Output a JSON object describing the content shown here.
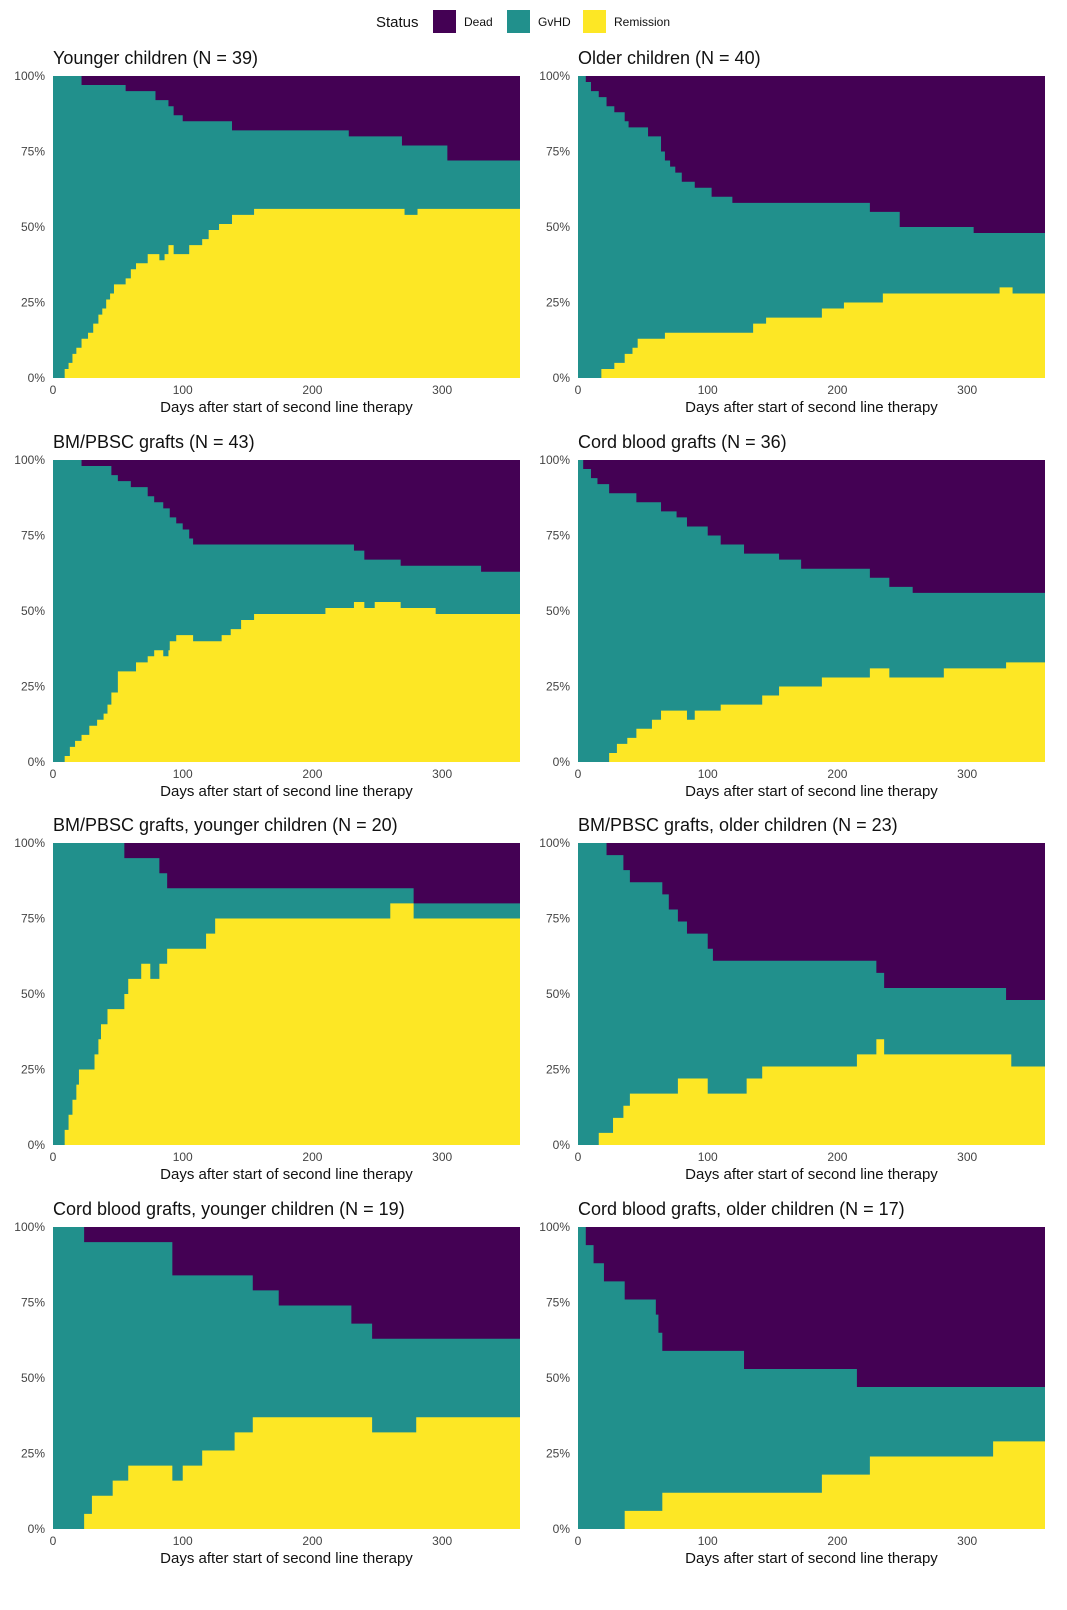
{
  "legend": {
    "title": "Status",
    "entries": [
      {
        "label": "Dead",
        "color": "#440154"
      },
      {
        "label": "GvHD",
        "color": "#21908C"
      },
      {
        "label": "Remission",
        "color": "#FDE725"
      }
    ]
  },
  "chart_data": [
    {
      "type": "area",
      "title": "Younger children (N = 39)",
      "xlabel": "Days after start of second line therapy",
      "xlim": [
        0,
        360
      ],
      "ylim": [
        0,
        1
      ],
      "xticks": [
        0,
        100,
        200,
        300
      ],
      "yticks": [
        "0%",
        "25%",
        "50%",
        "75%",
        "100%"
      ],
      "stacking": "Remission bottom, GvHD middle, Dead top",
      "steps": [
        [
          0,
          0.0,
          1.0
        ],
        [
          9,
          0.03,
          1.0
        ],
        [
          12,
          0.05,
          1.0
        ],
        [
          15,
          0.08,
          1.0
        ],
        [
          18,
          0.1,
          1.0
        ],
        [
          22,
          0.13,
          0.97
        ],
        [
          27,
          0.15,
          0.97
        ],
        [
          31,
          0.18,
          0.97
        ],
        [
          35,
          0.21,
          0.97
        ],
        [
          38,
          0.23,
          0.97
        ],
        [
          41,
          0.26,
          0.97
        ],
        [
          44,
          0.28,
          0.97
        ],
        [
          47,
          0.31,
          0.97
        ],
        [
          56,
          0.33,
          0.95
        ],
        [
          60,
          0.36,
          0.95
        ],
        [
          64,
          0.38,
          0.95
        ],
        [
          73,
          0.41,
          0.95
        ],
        [
          79,
          0.41,
          0.92
        ],
        [
          82,
          0.39,
          0.92
        ],
        [
          86,
          0.41,
          0.92
        ],
        [
          89,
          0.44,
          0.9
        ],
        [
          93,
          0.41,
          0.87
        ],
        [
          100,
          0.41,
          0.85
        ],
        [
          105,
          0.44,
          0.85
        ],
        [
          115,
          0.46,
          0.85
        ],
        [
          120,
          0.49,
          0.85
        ],
        [
          128,
          0.51,
          0.85
        ],
        [
          138,
          0.54,
          0.82
        ],
        [
          155,
          0.56,
          0.82
        ],
        [
          228,
          0.56,
          0.8
        ],
        [
          269,
          0.56,
          0.77
        ],
        [
          271,
          0.54,
          0.77
        ],
        [
          281,
          0.56,
          0.77
        ],
        [
          304,
          0.56,
          0.72
        ],
        [
          360,
          0.56,
          0.72
        ]
      ]
    },
    {
      "type": "area",
      "title": "Older children (N = 40)",
      "xlabel": "Days after start of second line therapy",
      "xlim": [
        0,
        360
      ],
      "ylim": [
        0,
        1
      ],
      "xticks": [
        0,
        100,
        200,
        300
      ],
      "yticks": [
        "0%",
        "25%",
        "50%",
        "75%",
        "100%"
      ],
      "stacking": "Remission bottom, GvHD middle, Dead top",
      "steps": [
        [
          0,
          0.0,
          1.0
        ],
        [
          6,
          0.0,
          0.98
        ],
        [
          10,
          0.0,
          0.95
        ],
        [
          16,
          0.0,
          0.93
        ],
        [
          18,
          0.03,
          0.93
        ],
        [
          22,
          0.03,
          0.9
        ],
        [
          28,
          0.05,
          0.88
        ],
        [
          36,
          0.08,
          0.85
        ],
        [
          39,
          0.08,
          0.83
        ],
        [
          42,
          0.1,
          0.83
        ],
        [
          46,
          0.13,
          0.83
        ],
        [
          54,
          0.13,
          0.8
        ],
        [
          64,
          0.13,
          0.75
        ],
        [
          67,
          0.15,
          0.72
        ],
        [
          71,
          0.15,
          0.7
        ],
        [
          75,
          0.15,
          0.68
        ],
        [
          80,
          0.15,
          0.65
        ],
        [
          85,
          0.15,
          0.65
        ],
        [
          90,
          0.15,
          0.63
        ],
        [
          97,
          0.15,
          0.63
        ],
        [
          103,
          0.15,
          0.6
        ],
        [
          108,
          0.15,
          0.6
        ],
        [
          119,
          0.15,
          0.58
        ],
        [
          135,
          0.18,
          0.58
        ],
        [
          145,
          0.2,
          0.58
        ],
        [
          188,
          0.23,
          0.58
        ],
        [
          205,
          0.25,
          0.58
        ],
        [
          225,
          0.25,
          0.55
        ],
        [
          235,
          0.28,
          0.55
        ],
        [
          248,
          0.28,
          0.5
        ],
        [
          255,
          0.28,
          0.5
        ],
        [
          305,
          0.28,
          0.48
        ],
        [
          325,
          0.3,
          0.48
        ],
        [
          335,
          0.28,
          0.48
        ],
        [
          360,
          0.28,
          0.48
        ]
      ]
    },
    {
      "type": "area",
      "title": "BM/PBSC grafts (N = 43)",
      "xlabel": "Days after start of second line therapy",
      "xlim": [
        0,
        360
      ],
      "ylim": [
        0,
        1
      ],
      "xticks": [
        0,
        100,
        200,
        300
      ],
      "yticks": [
        "0%",
        "25%",
        "50%",
        "75%",
        "100%"
      ],
      "stacking": "Remission bottom, GvHD middle, Dead top",
      "steps": [
        [
          0,
          0.0,
          1.0
        ],
        [
          9,
          0.02,
          1.0
        ],
        [
          13,
          0.05,
          1.0
        ],
        [
          17,
          0.07,
          1.0
        ],
        [
          22,
          0.09,
          0.98
        ],
        [
          28,
          0.12,
          0.98
        ],
        [
          34,
          0.14,
          0.98
        ],
        [
          39,
          0.16,
          0.98
        ],
        [
          42,
          0.19,
          0.98
        ],
        [
          45,
          0.23,
          0.95
        ],
        [
          50,
          0.3,
          0.93
        ],
        [
          60,
          0.3,
          0.91
        ],
        [
          64,
          0.33,
          0.91
        ],
        [
          73,
          0.35,
          0.88
        ],
        [
          78,
          0.37,
          0.86
        ],
        [
          85,
          0.35,
          0.84
        ],
        [
          89,
          0.37,
          0.84
        ],
        [
          90,
          0.4,
          0.81
        ],
        [
          95,
          0.42,
          0.79
        ],
        [
          100,
          0.42,
          0.77
        ],
        [
          105,
          0.42,
          0.74
        ],
        [
          108,
          0.4,
          0.72
        ],
        [
          120,
          0.4,
          0.72
        ],
        [
          130,
          0.42,
          0.72
        ],
        [
          137,
          0.44,
          0.72
        ],
        [
          145,
          0.47,
          0.72
        ],
        [
          155,
          0.49,
          0.72
        ],
        [
          210,
          0.51,
          0.72
        ],
        [
          232,
          0.53,
          0.7
        ],
        [
          236,
          0.53,
          0.7
        ],
        [
          240,
          0.51,
          0.67
        ],
        [
          248,
          0.53,
          0.67
        ],
        [
          262,
          0.53,
          0.67
        ],
        [
          268,
          0.51,
          0.65
        ],
        [
          295,
          0.49,
          0.65
        ],
        [
          330,
          0.49,
          0.63
        ],
        [
          360,
          0.49,
          0.63
        ]
      ]
    },
    {
      "type": "area",
      "title": "Cord blood grafts (N = 36)",
      "xlabel": "Days after start of second line therapy",
      "xlim": [
        0,
        360
      ],
      "ylim": [
        0,
        1
      ],
      "xticks": [
        0,
        100,
        200,
        300
      ],
      "yticks": [
        "0%",
        "25%",
        "50%",
        "75%",
        "100%"
      ],
      "stacking": "Remission bottom, GvHD middle, Dead top",
      "steps": [
        [
          0,
          0.0,
          1.0
        ],
        [
          4,
          0.0,
          0.97
        ],
        [
          10,
          0.0,
          0.94
        ],
        [
          15,
          0.0,
          0.92
        ],
        [
          24,
          0.03,
          0.89
        ],
        [
          30,
          0.06,
          0.89
        ],
        [
          38,
          0.08,
          0.89
        ],
        [
          45,
          0.11,
          0.86
        ],
        [
          57,
          0.14,
          0.86
        ],
        [
          64,
          0.17,
          0.83
        ],
        [
          76,
          0.17,
          0.81
        ],
        [
          84,
          0.14,
          0.78
        ],
        [
          90,
          0.17,
          0.78
        ],
        [
          100,
          0.17,
          0.75
        ],
        [
          110,
          0.19,
          0.72
        ],
        [
          128,
          0.19,
          0.69
        ],
        [
          142,
          0.22,
          0.69
        ],
        [
          155,
          0.25,
          0.67
        ],
        [
          172,
          0.25,
          0.64
        ],
        [
          188,
          0.28,
          0.64
        ],
        [
          225,
          0.31,
          0.61
        ],
        [
          240,
          0.28,
          0.58
        ],
        [
          258,
          0.28,
          0.56
        ],
        [
          282,
          0.31,
          0.56
        ],
        [
          330,
          0.33,
          0.56
        ],
        [
          360,
          0.33,
          0.56
        ]
      ]
    },
    {
      "type": "area",
      "title": "BM/PBSC grafts, younger children (N = 20)",
      "xlabel": "Days after start of second line therapy",
      "xlim": [
        0,
        360
      ],
      "ylim": [
        0,
        1
      ],
      "xticks": [
        0,
        100,
        200,
        300
      ],
      "yticks": [
        "0%",
        "25%",
        "50%",
        "75%",
        "100%"
      ],
      "stacking": "Remission bottom, GvHD middle, Dead top",
      "steps": [
        [
          0,
          0.0,
          1.0
        ],
        [
          9,
          0.05,
          1.0
        ],
        [
          12,
          0.1,
          1.0
        ],
        [
          15,
          0.15,
          1.0
        ],
        [
          18,
          0.2,
          1.0
        ],
        [
          20,
          0.25,
          1.0
        ],
        [
          32,
          0.3,
          1.0
        ],
        [
          35,
          0.35,
          1.0
        ],
        [
          37,
          0.4,
          1.0
        ],
        [
          42,
          0.45,
          1.0
        ],
        [
          55,
          0.5,
          0.95
        ],
        [
          58,
          0.55,
          0.95
        ],
        [
          68,
          0.6,
          0.95
        ],
        [
          75,
          0.55,
          0.95
        ],
        [
          82,
          0.6,
          0.9
        ],
        [
          88,
          0.65,
          0.85
        ],
        [
          118,
          0.7,
          0.85
        ],
        [
          125,
          0.75,
          0.85
        ],
        [
          260,
          0.8,
          0.85
        ],
        [
          278,
          0.75,
          0.8
        ],
        [
          360,
          0.75,
          0.8
        ]
      ]
    },
    {
      "type": "area",
      "title": "BM/PBSC grafts, older children (N = 23)",
      "xlabel": "Days after start of second line therapy",
      "xlim": [
        0,
        360
      ],
      "ylim": [
        0,
        1
      ],
      "xticks": [
        0,
        100,
        200,
        300
      ],
      "yticks": [
        "0%",
        "25%",
        "50%",
        "75%",
        "100%"
      ],
      "stacking": "Remission bottom, GvHD middle, Dead top",
      "steps": [
        [
          0,
          0.0,
          1.0
        ],
        [
          16,
          0.04,
          1.0
        ],
        [
          22,
          0.04,
          0.96
        ],
        [
          27,
          0.09,
          0.96
        ],
        [
          35,
          0.13,
          0.91
        ],
        [
          40,
          0.17,
          0.87
        ],
        [
          55,
          0.17,
          0.87
        ],
        [
          65,
          0.17,
          0.83
        ],
        [
          70,
          0.17,
          0.78
        ],
        [
          77,
          0.22,
          0.74
        ],
        [
          84,
          0.22,
          0.7
        ],
        [
          96,
          0.22,
          0.7
        ],
        [
          100,
          0.17,
          0.65
        ],
        [
          104,
          0.17,
          0.61
        ],
        [
          130,
          0.22,
          0.61
        ],
        [
          142,
          0.26,
          0.61
        ],
        [
          200,
          0.26,
          0.61
        ],
        [
          215,
          0.3,
          0.61
        ],
        [
          230,
          0.35,
          0.57
        ],
        [
          236,
          0.3,
          0.52
        ],
        [
          260,
          0.3,
          0.52
        ],
        [
          330,
          0.3,
          0.48
        ],
        [
          334,
          0.26,
          0.48
        ],
        [
          360,
          0.26,
          0.48
        ]
      ]
    },
    {
      "type": "area",
      "title": "Cord blood grafts, younger children (N = 19)",
      "xlabel": "Days after start of second line therapy",
      "xlim": [
        0,
        360
      ],
      "ylim": [
        0,
        1
      ],
      "xticks": [
        0,
        100,
        200,
        300
      ],
      "yticks": [
        "0%",
        "25%",
        "50%",
        "75%",
        "100%"
      ],
      "stacking": "Remission bottom, GvHD middle, Dead top",
      "steps": [
        [
          0,
          0.0,
          1.0
        ],
        [
          24,
          0.05,
          0.95
        ],
        [
          30,
          0.11,
          0.95
        ],
        [
          40,
          0.11,
          0.95
        ],
        [
          46,
          0.16,
          0.95
        ],
        [
          58,
          0.21,
          0.95
        ],
        [
          88,
          0.21,
          0.95
        ],
        [
          92,
          0.16,
          0.84
        ],
        [
          100,
          0.21,
          0.84
        ],
        [
          115,
          0.26,
          0.84
        ],
        [
          140,
          0.32,
          0.84
        ],
        [
          154,
          0.37,
          0.79
        ],
        [
          174,
          0.37,
          0.74
        ],
        [
          200,
          0.37,
          0.74
        ],
        [
          230,
          0.37,
          0.68
        ],
        [
          246,
          0.32,
          0.63
        ],
        [
          280,
          0.37,
          0.63
        ],
        [
          360,
          0.37,
          0.63
        ]
      ]
    },
    {
      "type": "area",
      "title": "Cord blood grafts, older children (N = 17)",
      "xlabel": "Days after start of second line therapy",
      "xlim": [
        0,
        360
      ],
      "ylim": [
        0,
        1
      ],
      "xticks": [
        0,
        100,
        200,
        300
      ],
      "yticks": [
        "0%",
        "25%",
        "50%",
        "75%",
        "100%"
      ],
      "stacking": "Remission bottom, GvHD middle, Dead top",
      "steps": [
        [
          0,
          0.0,
          1.0
        ],
        [
          6,
          0.0,
          0.94
        ],
        [
          12,
          0.0,
          0.88
        ],
        [
          20,
          0.0,
          0.82
        ],
        [
          36,
          0.06,
          0.76
        ],
        [
          60,
          0.06,
          0.71
        ],
        [
          62,
          0.06,
          0.65
        ],
        [
          65,
          0.12,
          0.59
        ],
        [
          100,
          0.12,
          0.59
        ],
        [
          128,
          0.12,
          0.53
        ],
        [
          188,
          0.18,
          0.53
        ],
        [
          215,
          0.18,
          0.47
        ],
        [
          225,
          0.24,
          0.47
        ],
        [
          300,
          0.24,
          0.47
        ],
        [
          320,
          0.29,
          0.47
        ],
        [
          360,
          0.29,
          0.47
        ]
      ]
    }
  ]
}
